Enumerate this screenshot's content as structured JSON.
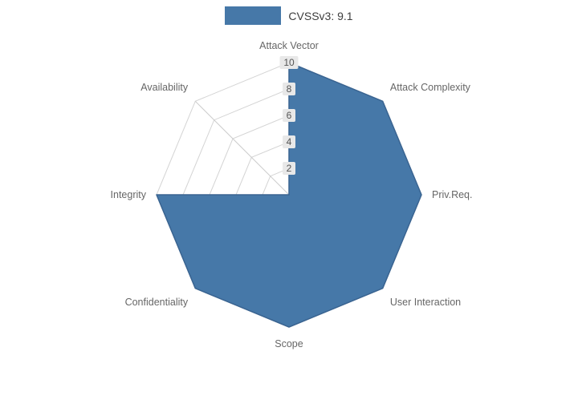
{
  "legend": {
    "label": "CVSSv3: 9.1"
  },
  "chart_data": {
    "type": "radar",
    "title": "",
    "series_name": "CVSSv3: 9.1",
    "categories": [
      "Attack Vector",
      "Attack Complexity",
      "Priv.Req.",
      "User Interaction",
      "Scope",
      "Confidentiality",
      "Integrity",
      "Availability"
    ],
    "values": [
      10,
      10,
      10,
      10,
      10,
      10,
      10,
      0
    ],
    "ticks": [
      2,
      4,
      6,
      8,
      10
    ],
    "rmax": 10,
    "legend_position": "top",
    "grid": true,
    "fill_color": "#4678a8",
    "edge_color": "#3a6491",
    "grid_color": "#d4d4d4",
    "spoke_color": "#cccccc",
    "axis_label_color": "#666666",
    "tick_label_color": "#555555",
    "tick_label_bg": "#e8e8e8"
  }
}
